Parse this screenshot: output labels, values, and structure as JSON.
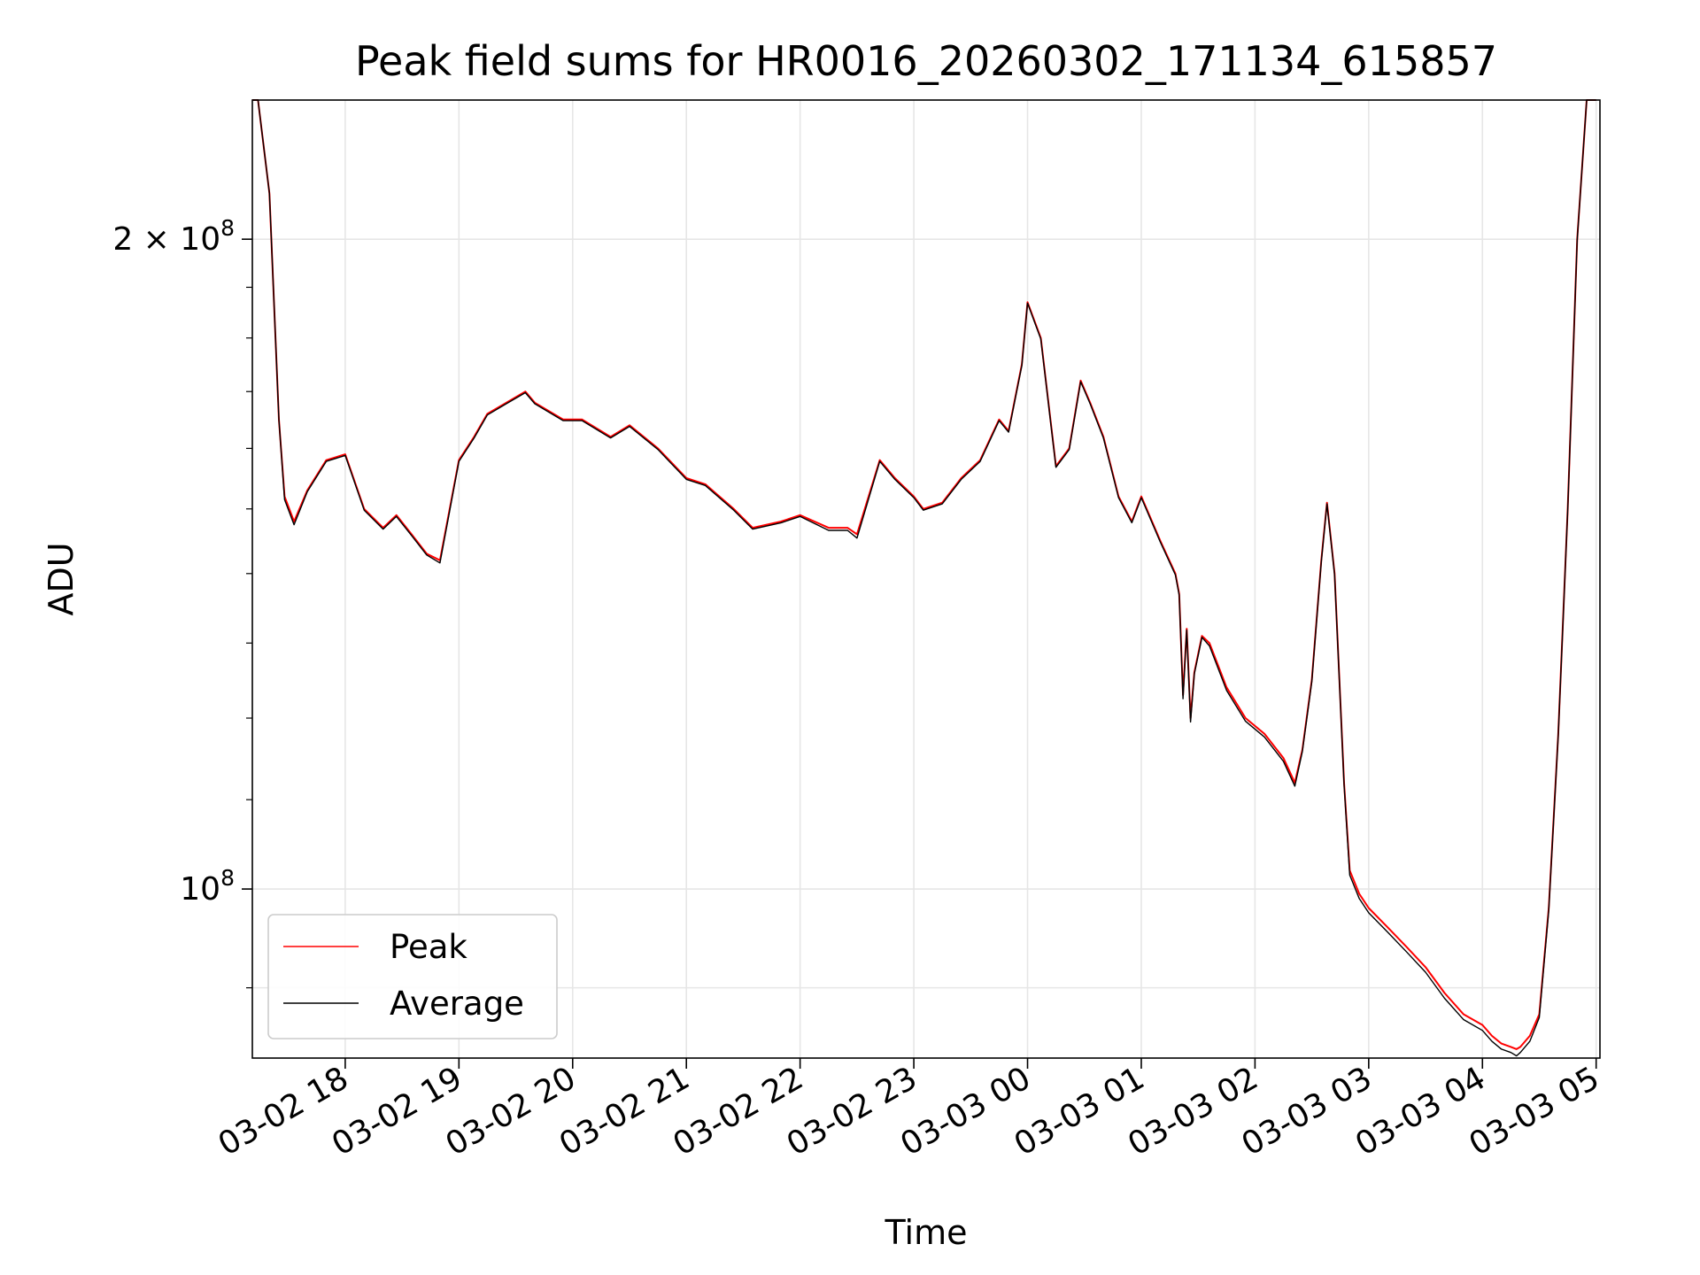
{
  "chart_data": {
    "type": "line",
    "title": "Peak field sums for HR0016_20260302_171134_615857",
    "xlabel": "Time",
    "ylabel": "ADU",
    "xscale": "time",
    "yscale": "log",
    "grid": true,
    "legend_position": "lower-left",
    "xlim": [
      "2026-03-02 17:11",
      "2026-03-03 05:02"
    ],
    "ylim": [
      83500000,
      232000000
    ],
    "x_ticks": [
      {
        "value": "2026-03-02 18:00",
        "label": "03-02 18"
      },
      {
        "value": "2026-03-02 19:00",
        "label": "03-02 19"
      },
      {
        "value": "2026-03-02 20:00",
        "label": "03-02 20"
      },
      {
        "value": "2026-03-02 21:00",
        "label": "03-02 21"
      },
      {
        "value": "2026-03-02 22:00",
        "label": "03-02 22"
      },
      {
        "value": "2026-03-02 23:00",
        "label": "03-02 23"
      },
      {
        "value": "2026-03-03 00:00",
        "label": "03-03 00"
      },
      {
        "value": "2026-03-03 01:00",
        "label": "03-03 01"
      },
      {
        "value": "2026-03-03 02:00",
        "label": "03-03 02"
      },
      {
        "value": "2026-03-03 03:00",
        "label": "03-03 03"
      },
      {
        "value": "2026-03-03 04:00",
        "label": "03-03 04"
      },
      {
        "value": "2026-03-03 05:00",
        "label": "03-03 05"
      }
    ],
    "y_major_ticks": [
      {
        "value": 100000000,
        "base": "10",
        "exp": "8"
      },
      {
        "value": 200000000,
        "base": "2 × 10",
        "exp": "8"
      }
    ],
    "y_minor_ticks": [
      90000000,
      110000000,
      120000000,
      130000000,
      140000000,
      150000000,
      160000000,
      170000000,
      180000000,
      190000000
    ],
    "y_grid_values": [
      90000000,
      100000000,
      200000000
    ],
    "series": [
      {
        "name": "Peak",
        "color": "#ff0000",
        "x": [
          "2026-03-02 17:11",
          "2026-03-02 17:14",
          "2026-03-02 17:20",
          "2026-03-02 17:25",
          "2026-03-02 17:28",
          "2026-03-02 17:33",
          "2026-03-02 17:40",
          "2026-03-02 17:50",
          "2026-03-02 18:00",
          "2026-03-02 18:10",
          "2026-03-02 18:20",
          "2026-03-02 18:27",
          "2026-03-02 18:35",
          "2026-03-02 18:43",
          "2026-03-02 18:50",
          "2026-03-02 19:00",
          "2026-03-02 19:08",
          "2026-03-02 19:15",
          "2026-03-02 19:25",
          "2026-03-02 19:35",
          "2026-03-02 19:40",
          "2026-03-02 19:55",
          "2026-03-02 20:05",
          "2026-03-02 20:15",
          "2026-03-02 20:20",
          "2026-03-02 20:30",
          "2026-03-02 20:45",
          "2026-03-02 21:00",
          "2026-03-02 21:10",
          "2026-03-02 21:25",
          "2026-03-02 21:35",
          "2026-03-02 21:50",
          "2026-03-02 22:00",
          "2026-03-02 22:15",
          "2026-03-02 22:25",
          "2026-03-02 22:30",
          "2026-03-02 22:42",
          "2026-03-02 22:50",
          "2026-03-02 23:00",
          "2026-03-02 23:05",
          "2026-03-02 23:15",
          "2026-03-02 23:25",
          "2026-03-02 23:35",
          "2026-03-02 23:45",
          "2026-03-02 23:50",
          "2026-03-02 23:57",
          "2026-03-03 00:00",
          "2026-03-03 00:07",
          "2026-03-03 00:15",
          "2026-03-03 00:22",
          "2026-03-03 00:28",
          "2026-03-03 00:33",
          "2026-03-03 00:40",
          "2026-03-03 00:48",
          "2026-03-03 00:55",
          "2026-03-03 01:00",
          "2026-03-03 01:10",
          "2026-03-03 01:18",
          "2026-03-03 01:20",
          "2026-03-03 01:22",
          "2026-03-03 01:24",
          "2026-03-03 01:26",
          "2026-03-03 01:28",
          "2026-03-03 01:32",
          "2026-03-03 01:36",
          "2026-03-03 01:45",
          "2026-03-03 01:55",
          "2026-03-03 02:05",
          "2026-03-03 02:15",
          "2026-03-03 02:21",
          "2026-03-03 02:25",
          "2026-03-03 02:30",
          "2026-03-03 02:35",
          "2026-03-03 02:38",
          "2026-03-03 02:42",
          "2026-03-03 02:47",
          "2026-03-03 02:50",
          "2026-03-03 02:55",
          "2026-03-03 03:00",
          "2026-03-03 03:10",
          "2026-03-03 03:20",
          "2026-03-03 03:30",
          "2026-03-03 03:40",
          "2026-03-03 03:50",
          "2026-03-03 04:00",
          "2026-03-03 04:05",
          "2026-03-03 04:10",
          "2026-03-03 04:15",
          "2026-03-03 04:18",
          "2026-03-03 04:20",
          "2026-03-03 04:25",
          "2026-03-03 04:30",
          "2026-03-03 04:35",
          "2026-03-03 04:40",
          "2026-03-03 04:45",
          "2026-03-03 04:50",
          "2026-03-03 04:55",
          "2026-03-03 05:00"
        ],
        "values": [
          232000000,
          232000000,
          210000000,
          165000000,
          152000000,
          148000000,
          153000000,
          158000000,
          159000000,
          150000000,
          147000000,
          149000000,
          146000000,
          143000000,
          142000000,
          158000000,
          162000000,
          166000000,
          168000000,
          170000000,
          168000000,
          165000000,
          165000000,
          163000000,
          162000000,
          164000000,
          160000000,
          155000000,
          154000000,
          150000000,
          147000000,
          148000000,
          149000000,
          147000000,
          147000000,
          146000000,
          158000000,
          155000000,
          152000000,
          150000000,
          151000000,
          155000000,
          158000000,
          165000000,
          163000000,
          175000000,
          187000000,
          180000000,
          157000000,
          160000000,
          172000000,
          168000000,
          162000000,
          152000000,
          148000000,
          152000000,
          145000000,
          140000000,
          137000000,
          123000000,
          132000000,
          120000000,
          126000000,
          131000000,
          130000000,
          124000000,
          120000000,
          118000000,
          115000000,
          112000000,
          116000000,
          125000000,
          142000000,
          151000000,
          140000000,
          112000000,
          102000000,
          99500000,
          98000000,
          96000000,
          94000000,
          92000000,
          89500000,
          87500000,
          86500000,
          85500000,
          84800000,
          84500000,
          84300000,
          84500000,
          85500000,
          87500000,
          98000000,
          118000000,
          150000000,
          200000000,
          232000000,
          232000000
        ]
      },
      {
        "name": "Average",
        "color": "#000000",
        "x": [
          "2026-03-02 17:11",
          "2026-03-02 17:14",
          "2026-03-02 17:20",
          "2026-03-02 17:25",
          "2026-03-02 17:28",
          "2026-03-02 17:33",
          "2026-03-02 17:40",
          "2026-03-02 17:50",
          "2026-03-02 18:00",
          "2026-03-02 18:10",
          "2026-03-02 18:20",
          "2026-03-02 18:27",
          "2026-03-02 18:35",
          "2026-03-02 18:43",
          "2026-03-02 18:50",
          "2026-03-02 19:00",
          "2026-03-02 19:08",
          "2026-03-02 19:15",
          "2026-03-02 19:25",
          "2026-03-02 19:35",
          "2026-03-02 19:40",
          "2026-03-02 19:55",
          "2026-03-02 20:05",
          "2026-03-02 20:15",
          "2026-03-02 20:20",
          "2026-03-02 20:30",
          "2026-03-02 20:45",
          "2026-03-02 21:00",
          "2026-03-02 21:10",
          "2026-03-02 21:25",
          "2026-03-02 21:35",
          "2026-03-02 21:50",
          "2026-03-02 22:00",
          "2026-03-02 22:15",
          "2026-03-02 22:25",
          "2026-03-02 22:30",
          "2026-03-02 22:42",
          "2026-03-02 22:50",
          "2026-03-02 23:00",
          "2026-03-02 23:05",
          "2026-03-02 23:15",
          "2026-03-02 23:25",
          "2026-03-02 23:35",
          "2026-03-02 23:45",
          "2026-03-02 23:50",
          "2026-03-02 23:57",
          "2026-03-03 00:00",
          "2026-03-03 00:07",
          "2026-03-03 00:15",
          "2026-03-03 00:22",
          "2026-03-03 00:28",
          "2026-03-03 00:33",
          "2026-03-03 00:40",
          "2026-03-03 00:48",
          "2026-03-03 00:55",
          "2026-03-03 01:00",
          "2026-03-03 01:10",
          "2026-03-03 01:18",
          "2026-03-03 01:20",
          "2026-03-03 01:22",
          "2026-03-03 01:24",
          "2026-03-03 01:26",
          "2026-03-03 01:28",
          "2026-03-03 01:32",
          "2026-03-03 01:36",
          "2026-03-03 01:45",
          "2026-03-03 01:55",
          "2026-03-03 02:05",
          "2026-03-03 02:15",
          "2026-03-03 02:21",
          "2026-03-03 02:25",
          "2026-03-03 02:30",
          "2026-03-03 02:35",
          "2026-03-03 02:38",
          "2026-03-03 02:42",
          "2026-03-03 02:47",
          "2026-03-03 02:50",
          "2026-03-03 02:55",
          "2026-03-03 03:00",
          "2026-03-03 03:10",
          "2026-03-03 03:20",
          "2026-03-03 03:30",
          "2026-03-03 03:40",
          "2026-03-03 03:50",
          "2026-03-03 04:00",
          "2026-03-03 04:05",
          "2026-03-03 04:10",
          "2026-03-03 04:15",
          "2026-03-03 04:18",
          "2026-03-03 04:20",
          "2026-03-03 04:25",
          "2026-03-03 04:30",
          "2026-03-03 04:35",
          "2026-03-03 04:40",
          "2026-03-03 04:45",
          "2026-03-03 04:50",
          "2026-03-03 04:55",
          "2026-03-03 05:00"
        ],
        "values": [
          232000000,
          232000000,
          210000000,
          165000000,
          151500000,
          147500000,
          152800000,
          157800000,
          158800000,
          149800000,
          146800000,
          148800000,
          145800000,
          142800000,
          141600000,
          157800000,
          161800000,
          165800000,
          167800000,
          169800000,
          167800000,
          164800000,
          164800000,
          162800000,
          161800000,
          163800000,
          159800000,
          154800000,
          153800000,
          149800000,
          146800000,
          147800000,
          148800000,
          146600000,
          146600000,
          145400000,
          157800000,
          154800000,
          151800000,
          149800000,
          150800000,
          154800000,
          157800000,
          164800000,
          162800000,
          174800000,
          186800000,
          179800000,
          156800000,
          159800000,
          171800000,
          167800000,
          161800000,
          151800000,
          147800000,
          151800000,
          144800000,
          139800000,
          136800000,
          122500000,
          131800000,
          119500000,
          125800000,
          130800000,
          129600000,
          123600000,
          119600000,
          117600000,
          114600000,
          111600000,
          115800000,
          124800000,
          141800000,
          150800000,
          139800000,
          111800000,
          101500000,
          99000000,
          97500000,
          95500000,
          93500000,
          91500000,
          89000000,
          87000000,
          86000000,
          85000000,
          84300000,
          84000000,
          83700000,
          84000000,
          85000000,
          87200000,
          97800000,
          117800000,
          149800000,
          199800000,
          232000000,
          232000000
        ]
      }
    ]
  }
}
